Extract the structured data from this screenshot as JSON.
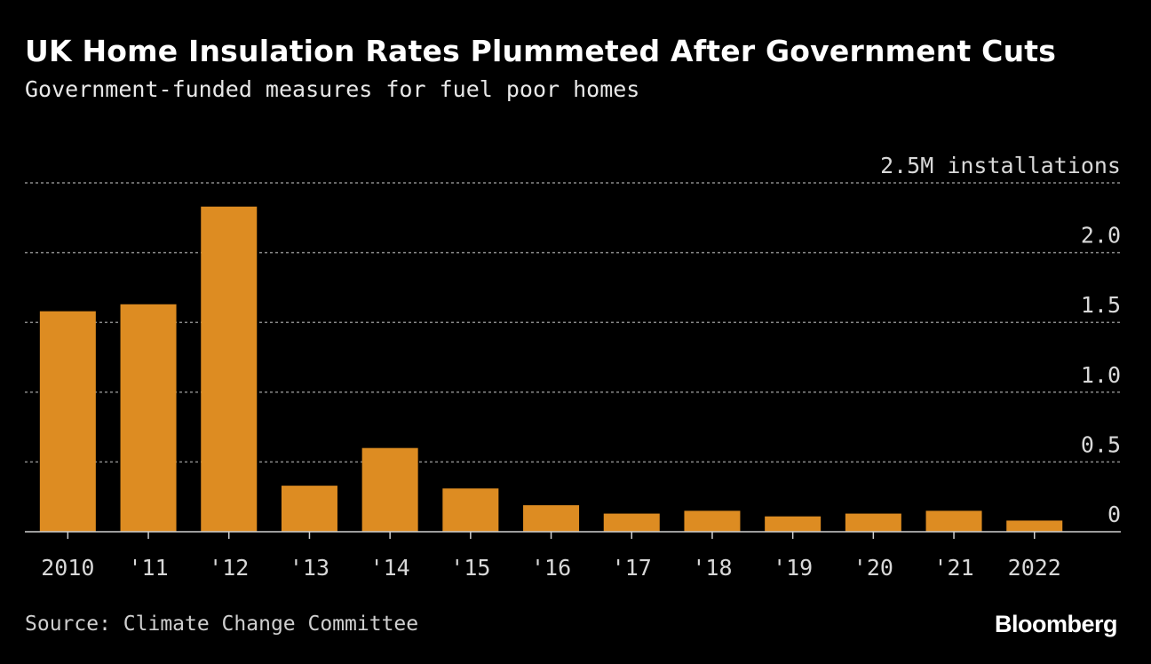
{
  "header": {
    "title": "UK Home Insulation Rates Plummeted After Government Cuts",
    "subtitle": "Government-funded measures for fuel poor homes"
  },
  "footer": {
    "source": "Source: Climate Change Committee",
    "brand": "Bloomberg"
  },
  "colors": {
    "background": "#000000",
    "bar": "#dd8c22",
    "grid": "#8a8a8a",
    "axis": "#d0d0d0",
    "text": "#d8d8d8"
  },
  "chart_data": {
    "type": "bar",
    "title": "UK Home Insulation Rates Plummeted After Government Cuts",
    "subtitle": "Government-funded measures for fuel poor homes",
    "categories": [
      "2010",
      "'11",
      "'12",
      "'13",
      "'14",
      "'15",
      "'16",
      "'17",
      "'18",
      "'19",
      "'20",
      "'21",
      "2022"
    ],
    "values": [
      1.58,
      1.63,
      2.33,
      0.33,
      0.6,
      0.31,
      0.19,
      0.13,
      0.15,
      0.11,
      0.13,
      0.15,
      0.08
    ],
    "ylim": [
      0,
      2.5
    ],
    "yticks": [
      0,
      0.5,
      1.0,
      1.5,
      2.0,
      2.5
    ],
    "ytick_labels": [
      "0",
      "0.5",
      "1.0",
      "1.5",
      "2.0",
      "2.5M installations"
    ],
    "y_axis_position": "right",
    "grid": true,
    "legend": "none"
  }
}
